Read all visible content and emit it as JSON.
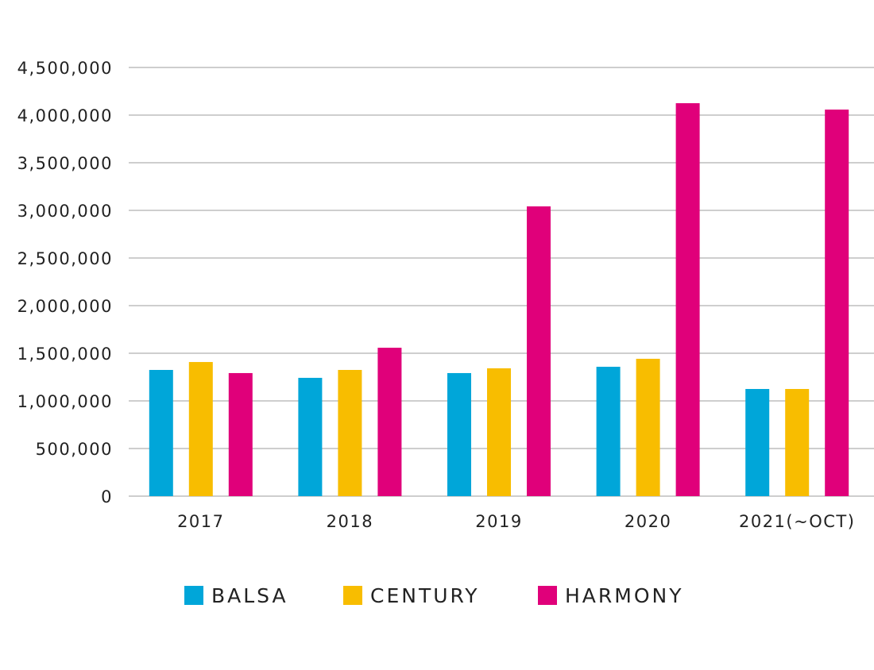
{
  "chart_data": {
    "type": "bar",
    "title": "",
    "xlabel": "",
    "ylabel": "",
    "categories": [
      "2017",
      "2018",
      "2019",
      "2020",
      "2021(~OCT)"
    ],
    "series": [
      {
        "name": "BALSA",
        "color": "#00a6d9",
        "values": [
          1325000,
          1242000,
          1292000,
          1358000,
          1125000
        ]
      },
      {
        "name": "CENTURY",
        "color": "#f8bd00",
        "values": [
          1408000,
          1325000,
          1342000,
          1442000,
          1125000
        ]
      },
      {
        "name": "HARMONY",
        "color": "#e0007a",
        "values": [
          1292000,
          1558000,
          3042000,
          4125000,
          4058000
        ]
      }
    ],
    "ylim": [
      0,
      4500000
    ],
    "yticks": [
      0,
      500000,
      1000000,
      1500000,
      2000000,
      2500000,
      3000000,
      3500000,
      4000000,
      4500000
    ],
    "ytick_labels": [
      "0",
      "500,000",
      "1,000,000",
      "1,500,000",
      "2,000,000",
      "2,500,000",
      "3,000,000",
      "3,500,000",
      "4,000,000",
      "4,500,000"
    ],
    "grid": true,
    "legend_position": "bottom"
  }
}
